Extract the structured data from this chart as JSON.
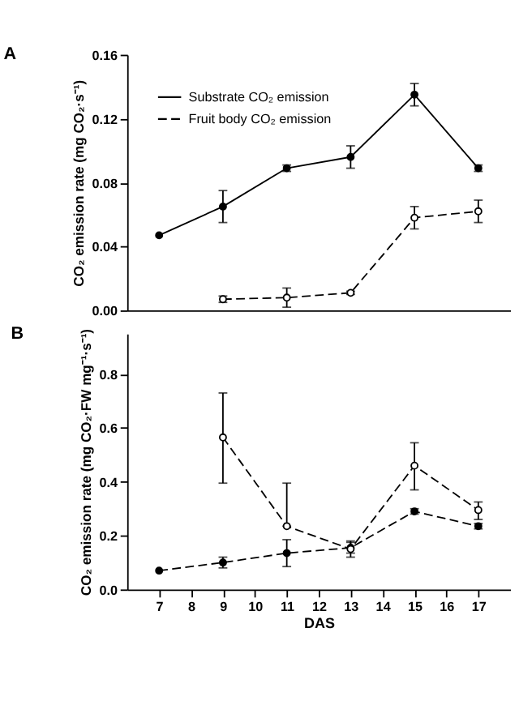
{
  "chart_data": [
    {
      "type": "line",
      "title": "A",
      "ylabel": "CO₂ emission rate (mg CO₂·s⁻¹)",
      "x": [
        7,
        9,
        11,
        13,
        15,
        17
      ],
      "xlim": [
        6,
        18
      ],
      "xticks": [
        7,
        8,
        9,
        10,
        11,
        12,
        13,
        14,
        15,
        16,
        17
      ],
      "ylim": [
        0,
        0.16
      ],
      "yticks": [
        {
          "value": 0,
          "label": "0.00"
        },
        0.04,
        0.08,
        0.12,
        0.16
      ],
      "tick_labels": "y",
      "grid": false,
      "legend": "top left",
      "marker": "circle",
      "series": [
        {
          "name": "Substrate CO₂ emission",
          "color": "#000000",
          "line_style": "solid",
          "values": [
            0.047,
            0.065,
            0.089,
            0.096,
            0.135,
            0.089
          ],
          "errors": [
            null,
            0.01,
            0.002,
            0.007,
            0.007,
            0.002
          ]
        },
        {
          "name": "Fruit body CO₂ emission",
          "color": "#000000",
          "line_style": "dashed",
          "values": [
            null,
            0.007,
            0.008,
            0.011,
            0.058,
            0.062
          ],
          "errors": [
            null,
            0.002,
            0.006,
            0.001,
            0.007,
            0.007
          ]
        }
      ]
    },
    {
      "type": "line",
      "title": "B",
      "xlabel": "DAS",
      "ylabel": "CO₂ emission rate (mg CO₂·FW mg⁻¹·s⁻¹)",
      "x": [
        7,
        9,
        11,
        13,
        15,
        17
      ],
      "xlim": [
        6,
        18
      ],
      "xticks": [
        7,
        8,
        9,
        10,
        11,
        12,
        13,
        14,
        15,
        16,
        17
      ],
      "ylim": [
        0,
        0.95
      ],
      "yticks": [
        {
          "value": 0,
          "label": "0.0"
        },
        0.2,
        0.4,
        0.6,
        0.8
      ],
      "grid": false,
      "legend": false,
      "marker": "circle",
      "series": [
        {
          "color": "#000000",
          "line_style": "dashed",
          "values": [
            0.07,
            0.1,
            0.135,
            0.155,
            0.29,
            0.235
          ],
          "errors": [
            null,
            0.02,
            0.05,
            0.02,
            0.01,
            0.01
          ]
        },
        {
          "color": "#000000",
          "line_style": "dashed",
          "values": [
            null,
            0.565,
            0.235,
            0.15,
            0.46,
            0.295
          ],
          "errors": [
            null,
            [
              0.395,
              0.73
            ],
            [
              0.235,
              0.395
            ],
            [
              0.12,
              0.18
            ],
            [
              0.37,
              0.545
            ],
            [
              0.26,
              0.325
            ]
          ]
        }
      ]
    }
  ]
}
